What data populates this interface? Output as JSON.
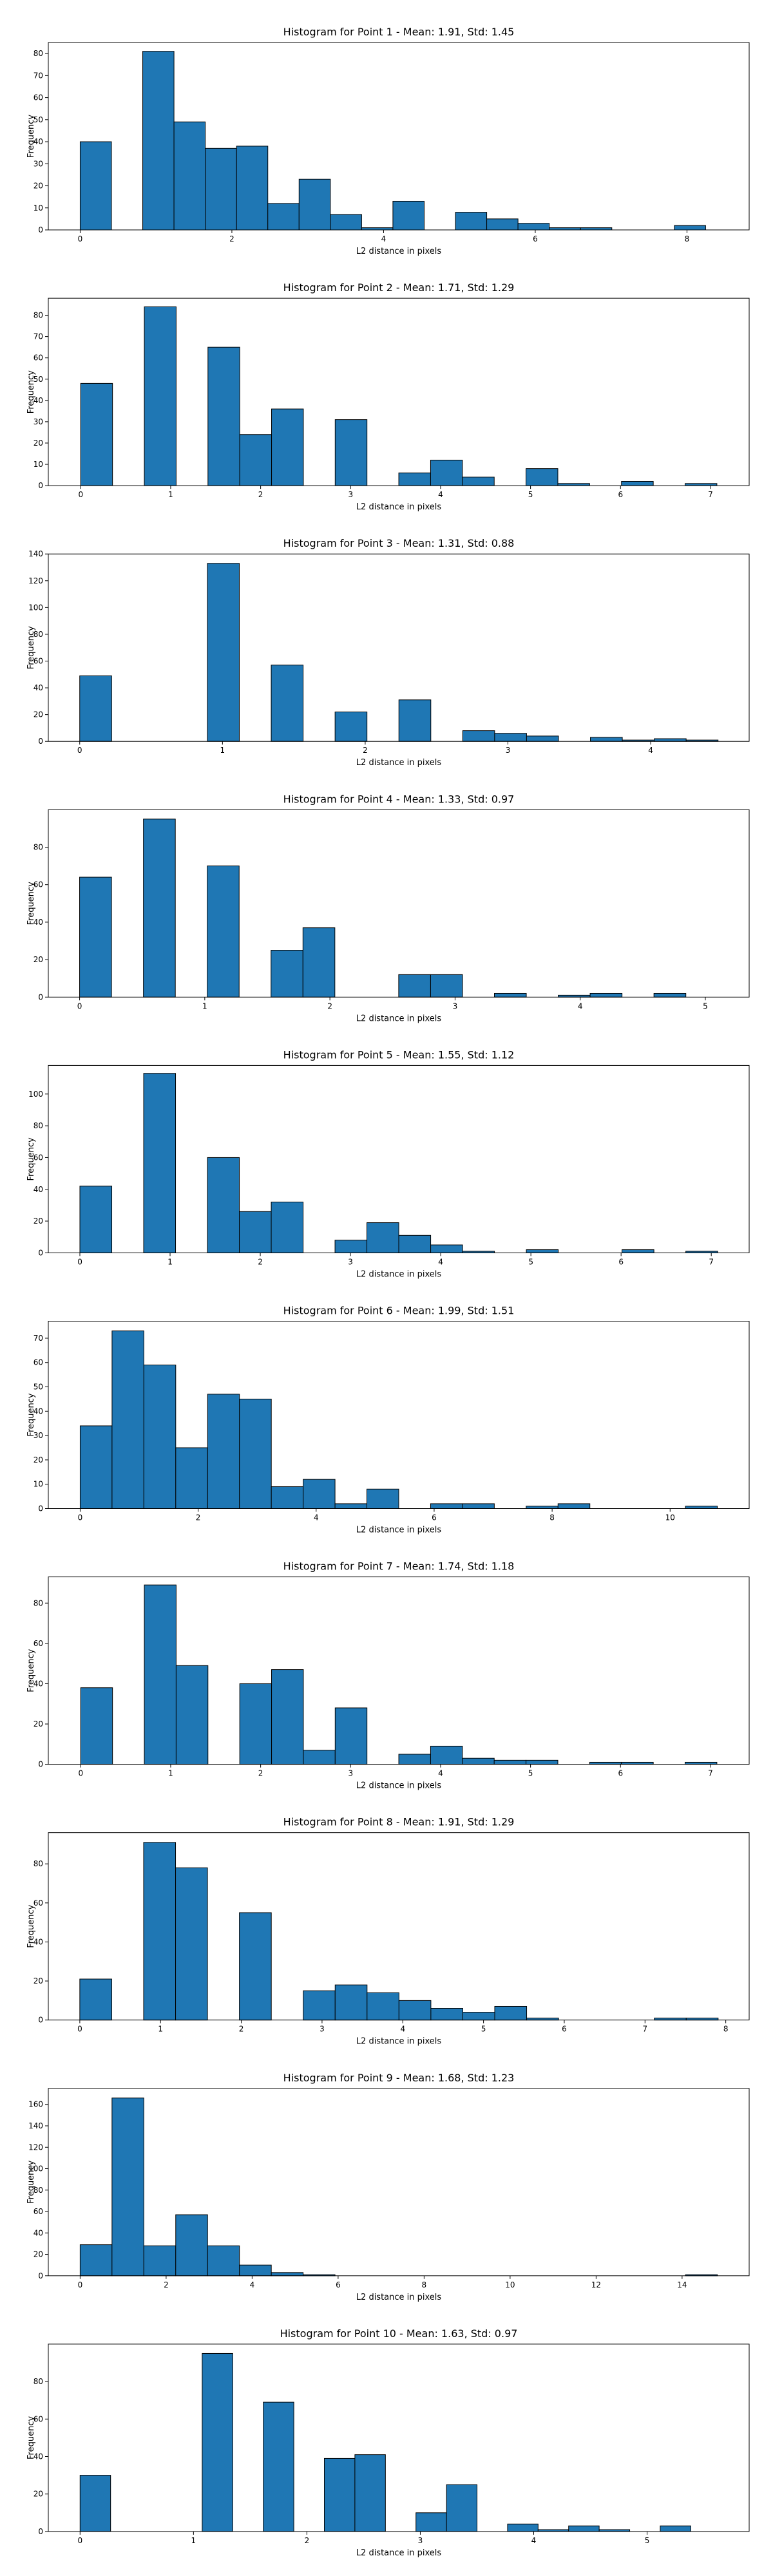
{
  "figure": {
    "bar_color": "#1f77b4",
    "edge_color": "#000000",
    "background": "#ffffff"
  },
  "chart_data": [
    {
      "type": "bar",
      "title": "Histogram for Point 1 - Mean: 1.91, Std: 1.45",
      "xlabel": "L2 distance in pixels",
      "ylabel": "Frequency",
      "xlim": [
        -0.42,
        8.82
      ],
      "ylim": [
        0,
        85
      ],
      "xticks": [
        0,
        2,
        4,
        6,
        8
      ],
      "yticks": [
        0,
        10,
        20,
        30,
        40,
        50,
        60,
        70,
        80
      ],
      "bin_edges": [
        0.0,
        0.4123,
        0.8246,
        1.2369,
        1.6492,
        2.0615,
        2.4738,
        2.8861,
        3.2984,
        3.7107,
        4.123,
        4.5353,
        4.9476,
        5.3599,
        5.7722,
        6.1845,
        6.5968,
        7.0091,
        7.4214,
        7.8337,
        8.246
      ],
      "counts": [
        40,
        0,
        81,
        49,
        37,
        38,
        12,
        23,
        7,
        1,
        13,
        0,
        8,
        5,
        3,
        1,
        1,
        0,
        0,
        2
      ]
    },
    {
      "type": "bar",
      "title": "Histogram for Point 2 - Mean: 1.71, Std: 1.29",
      "xlabel": "L2 distance in pixels",
      "ylabel": "Frequency",
      "xlim": [
        -0.36,
        7.43
      ],
      "ylim": [
        0,
        88
      ],
      "xticks": [
        0,
        1,
        2,
        3,
        4,
        5,
        6,
        7
      ],
      "yticks": [
        0,
        10,
        20,
        30,
        40,
        50,
        60,
        70,
        80
      ],
      "bin_edges": [
        0.0,
        0.3536,
        0.7071,
        1.0607,
        1.4142,
        1.7678,
        2.1213,
        2.4749,
        2.8284,
        3.182,
        3.5355,
        3.8891,
        4.2426,
        4.5962,
        4.9497,
        5.3033,
        5.6569,
        6.0104,
        6.364,
        6.7175,
        7.0711
      ],
      "counts": [
        48,
        0,
        84,
        0,
        65,
        24,
        36,
        0,
        31,
        0,
        6,
        12,
        4,
        0,
        8,
        1,
        0,
        2,
        0,
        1
      ]
    },
    {
      "type": "bar",
      "title": "Histogram for Point 3 - Mean: 1.31, Std: 0.88",
      "xlabel": "L2 distance in pixels",
      "ylabel": "Frequency",
      "xlim": [
        -0.22,
        4.69
      ],
      "ylim": [
        0,
        140
      ],
      "xticks": [
        0,
        1,
        2,
        3,
        4
      ],
      "yticks": [
        0,
        20,
        40,
        60,
        80,
        100,
        120,
        140
      ],
      "bin_edges": [
        0.0,
        0.2236,
        0.4472,
        0.6708,
        0.8944,
        1.118,
        1.3416,
        1.5652,
        1.7889,
        2.0125,
        2.2361,
        2.4597,
        2.6833,
        2.9069,
        3.1305,
        3.3541,
        3.5777,
        3.8013,
        4.0249,
        4.2485,
        4.4721
      ],
      "counts": [
        49,
        0,
        0,
        0,
        133,
        0,
        57,
        0,
        22,
        0,
        31,
        0,
        8,
        6,
        4,
        0,
        3,
        1,
        2,
        1
      ]
    },
    {
      "type": "bar",
      "title": "Histogram for Point 4 - Mean: 1.33, Std: 0.97",
      "xlabel": "L2 distance in pixels",
      "ylabel": "Frequency",
      "xlim": [
        -0.25,
        5.35
      ],
      "ylim": [
        0,
        100
      ],
      "xticks": [
        0,
        1,
        2,
        3,
        4,
        5
      ],
      "yticks": [
        0,
        20,
        40,
        60,
        80
      ],
      "bin_edges": [
        0.0,
        0.255,
        0.5099,
        0.7649,
        1.0198,
        1.2748,
        1.5297,
        1.7847,
        2.0396,
        2.2946,
        2.5495,
        2.8045,
        3.0594,
        3.3144,
        3.5693,
        3.8243,
        4.0792,
        4.3342,
        4.5891,
        4.8441,
        5.099
      ],
      "counts": [
        64,
        0,
        95,
        0,
        70,
        0,
        25,
        37,
        0,
        0,
        12,
        12,
        0,
        2,
        0,
        1,
        2,
        0,
        2,
        0
      ]
    },
    {
      "type": "bar",
      "title": "Histogram for Point 5 - Mean: 1.55, Std: 1.12",
      "xlabel": "L2 distance in pixels",
      "ylabel": "Frequency",
      "xlim": [
        -0.35,
        7.42
      ],
      "ylim": [
        0,
        118
      ],
      "xticks": [
        0,
        1,
        2,
        3,
        4,
        5,
        6,
        7
      ],
      "yticks": [
        0,
        20,
        40,
        60,
        80,
        100
      ],
      "bin_edges": [
        0.0,
        0.3536,
        0.7071,
        1.0607,
        1.4142,
        1.7678,
        2.1213,
        2.4749,
        2.8284,
        3.182,
        3.5355,
        3.8891,
        4.2426,
        4.5962,
        4.9497,
        5.3033,
        5.6569,
        6.0104,
        6.364,
        6.7175,
        7.0711
      ],
      "counts": [
        42,
        0,
        113,
        0,
        60,
        26,
        32,
        0,
        8,
        19,
        11,
        5,
        1,
        0,
        2,
        0,
        0,
        2,
        0,
        1
      ]
    },
    {
      "type": "bar",
      "title": "Histogram for Point 6 - Mean: 1.99, Std: 1.51",
      "xlabel": "L2 distance in pixels",
      "ylabel": "Frequency",
      "xlim": [
        -0.54,
        11.34
      ],
      "ylim": [
        0,
        77
      ],
      "xticks": [
        0,
        2,
        4,
        6,
        8,
        10
      ],
      "yticks": [
        0,
        10,
        20,
        30,
        40,
        50,
        60,
        70
      ],
      "bin_edges": [
        0.0,
        0.54,
        1.08,
        1.62,
        2.16,
        2.7,
        3.24,
        3.78,
        4.32,
        4.86,
        5.4,
        5.94,
        6.48,
        7.02,
        7.56,
        8.1,
        8.64,
        9.18,
        9.72,
        10.26,
        10.8
      ],
      "counts": [
        34,
        73,
        59,
        25,
        47,
        45,
        9,
        12,
        2,
        8,
        0,
        2,
        2,
        0,
        1,
        2,
        0,
        0,
        0,
        1
      ]
    },
    {
      "type": "bar",
      "title": "Histogram for Point 7 - Mean: 1.74, Std: 1.18",
      "xlabel": "L2 distance in pixels",
      "ylabel": "Frequency",
      "xlim": [
        -0.36,
        7.43
      ],
      "ylim": [
        0,
        93
      ],
      "xticks": [
        0,
        1,
        2,
        3,
        4,
        5,
        6,
        7
      ],
      "yticks": [
        0,
        20,
        40,
        60,
        80
      ],
      "bin_edges": [
        0.0,
        0.3536,
        0.7071,
        1.0607,
        1.4142,
        1.7678,
        2.1213,
        2.4749,
        2.8284,
        3.182,
        3.5355,
        3.8891,
        4.2426,
        4.5962,
        4.9497,
        5.3033,
        5.6569,
        6.0104,
        6.364,
        6.7175,
        7.0711
      ],
      "counts": [
        38,
        0,
        89,
        49,
        0,
        40,
        47,
        7,
        28,
        0,
        5,
        9,
        3,
        2,
        2,
        0,
        1,
        1,
        0,
        1
      ]
    },
    {
      "type": "bar",
      "title": "Histogram for Point 8 - Mean: 1.91, Std: 1.29",
      "xlabel": "L2 distance in pixels",
      "ylabel": "Frequency",
      "xlim": [
        -0.39,
        8.29
      ],
      "ylim": [
        0,
        96
      ],
      "xticks": [
        0,
        1,
        2,
        3,
        4,
        5,
        6,
        7,
        8
      ],
      "yticks": [
        0,
        20,
        40,
        60,
        80
      ],
      "bin_edges": [
        0.0,
        0.3953,
        0.7906,
        1.1859,
        1.5812,
        1.9764,
        2.3717,
        2.767,
        3.1623,
        3.5576,
        3.9529,
        4.3482,
        4.7434,
        5.1387,
        5.534,
        5.9293,
        6.3246,
        6.7199,
        7.1151,
        7.5104,
        7.9057
      ],
      "counts": [
        21,
        0,
        91,
        78,
        0,
        55,
        0,
        15,
        18,
        14,
        10,
        6,
        4,
        7,
        1,
        0,
        0,
        0,
        1,
        1
      ]
    },
    {
      "type": "bar",
      "title": "Histogram for Point 9 - Mean: 1.68, Std: 1.23",
      "xlabel": "L2 distance in pixels",
      "ylabel": "Frequency",
      "xlim": [
        -0.74,
        15.56
      ],
      "ylim": [
        0,
        175
      ],
      "xticks": [
        0,
        2,
        4,
        6,
        8,
        10,
        12,
        14
      ],
      "yticks": [
        0,
        20,
        40,
        60,
        80,
        100,
        120,
        140,
        160
      ],
      "bin_edges": [
        0.0,
        0.741,
        1.482,
        2.223,
        2.964,
        3.705,
        4.446,
        5.187,
        5.928,
        6.669,
        7.41,
        8.151,
        8.892,
        9.633,
        10.374,
        11.115,
        11.856,
        12.597,
        13.338,
        14.079,
        14.82
      ],
      "counts": [
        29,
        166,
        28,
        57,
        28,
        10,
        3,
        1,
        0,
        0,
        0,
        0,
        0,
        0,
        0,
        0,
        0,
        0,
        0,
        1
      ]
    },
    {
      "type": "bar",
      "title": "Histogram for Point 10 - Mean: 1.63, Std: 0.97",
      "xlabel": "L2 distance in pixels",
      "ylabel": "Frequency",
      "xlim": [
        -0.28,
        5.9
      ],
      "ylim": [
        0,
        100
      ],
      "xticks": [
        0,
        1,
        2,
        3,
        4,
        5
      ],
      "yticks": [
        0,
        20,
        40,
        60,
        80
      ],
      "bin_edges": [
        0.0,
        0.2693,
        0.5385,
        0.8078,
        1.077,
        1.3463,
        1.6155,
        1.8848,
        2.154,
        2.4233,
        2.6926,
        2.9618,
        3.2311,
        3.5003,
        3.7696,
        4.0388,
        4.3081,
        4.5773,
        4.8466,
        5.1158,
        5.3851
      ],
      "counts": [
        30,
        0,
        0,
        0,
        95,
        0,
        69,
        0,
        39,
        41,
        0,
        10,
        25,
        0,
        4,
        1,
        3,
        1,
        0,
        3
      ]
    }
  ]
}
